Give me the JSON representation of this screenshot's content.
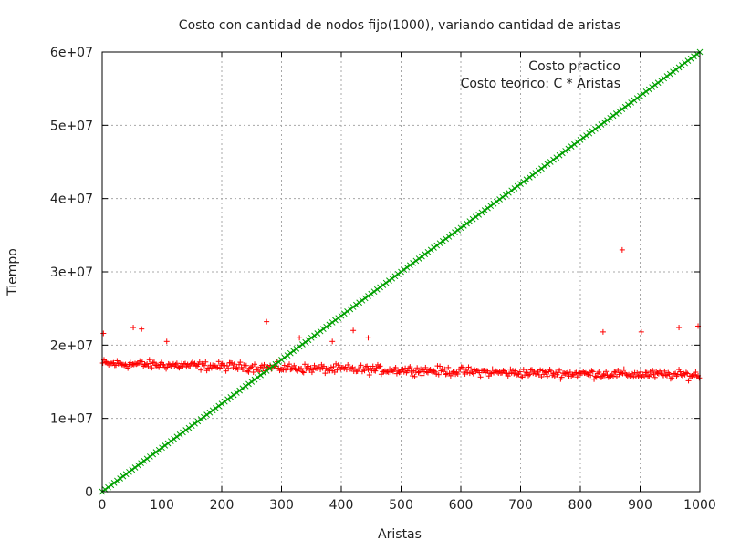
{
  "chart_data": {
    "type": "scatter",
    "title": "Costo con cantidad de nodos fijo(1000), variando cantidad de aristas",
    "xlabel": "Aristas",
    "ylabel": "Tiempo",
    "xlim": [
      0,
      1000
    ],
    "ylim": [
      0,
      60000000
    ],
    "xticks": [
      0,
      100,
      200,
      300,
      400,
      500,
      600,
      700,
      800,
      900,
      1000
    ],
    "yticks": [
      0,
      10000000,
      20000000,
      30000000,
      40000000,
      50000000,
      60000000
    ],
    "xtick_labels": [
      "0",
      "100",
      "200",
      "300",
      "400",
      "500",
      "600",
      "700",
      "800",
      "900",
      "1000"
    ],
    "ytick_labels": [
      "0",
      "1e+07",
      "2e+07",
      "3e+07",
      "4e+07",
      "5e+07",
      "6e+07"
    ],
    "grid": true,
    "legend_position": "top-right",
    "series": [
      {
        "name": "Costo practico",
        "color": "#ff0000",
        "marker": "plus",
        "baseline": {
          "x": [
            0,
            100,
            200,
            300,
            400,
            500,
            600,
            700,
            800,
            900,
            1000
          ],
          "y": [
            17500000,
            17300000,
            17100000,
            16900000,
            16700000,
            16600000,
            16400000,
            16200000,
            16100000,
            16000000,
            15900000
          ]
        },
        "noise_amplitude": 600000,
        "outliers": [
          {
            "x": 2,
            "y": 21600000
          },
          {
            "x": 52,
            "y": 22400000
          },
          {
            "x": 66,
            "y": 22200000
          },
          {
            "x": 108,
            "y": 20500000
          },
          {
            "x": 275,
            "y": 23200000
          },
          {
            "x": 330,
            "y": 21000000
          },
          {
            "x": 385,
            "y": 20500000
          },
          {
            "x": 420,
            "y": 22000000
          },
          {
            "x": 445,
            "y": 21000000
          },
          {
            "x": 838,
            "y": 21800000
          },
          {
            "x": 870,
            "y": 33000000
          },
          {
            "x": 902,
            "y": 21800000
          },
          {
            "x": 965,
            "y": 22400000
          },
          {
            "x": 997,
            "y": 22600000
          }
        ]
      },
      {
        "name": "Costo teorico: C * Aristas",
        "color": "#00a000",
        "marker": "x",
        "coefficient": 60000
      }
    ]
  }
}
